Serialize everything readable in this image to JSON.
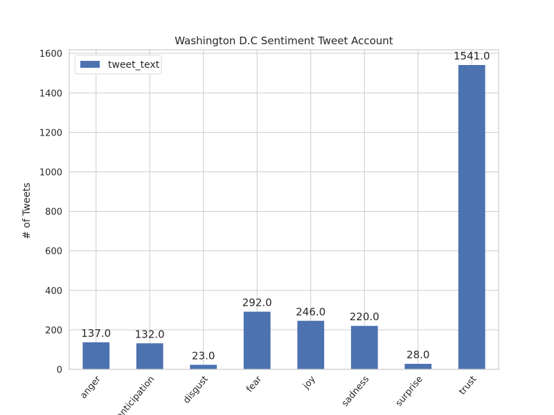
{
  "chart_data": {
    "type": "bar",
    "title": "Washington D.C Sentiment Tweet Account",
    "xlabel": "",
    "ylabel": "# of Tweets",
    "categories": [
      "anger",
      "anticipation",
      "disgust",
      "fear",
      "joy",
      "sadness",
      "surprise",
      "trust"
    ],
    "series": [
      {
        "name": "tweet_text",
        "values": [
          137.0,
          132.0,
          23.0,
          292.0,
          246.0,
          220.0,
          28.0,
          1541.0
        ],
        "color": "#4c72b0"
      }
    ],
    "value_labels": [
      "137.0",
      "132.0",
      "23.0",
      "292.0",
      "246.0",
      "220.0",
      "28.0",
      "1541.0"
    ],
    "ylim": [
      0,
      1618.05
    ],
    "yticks": [
      0,
      200,
      400,
      600,
      800,
      1000,
      1200,
      1400,
      1600
    ],
    "grid": true,
    "legend_position": "top-left",
    "x_tick_rotation": -50
  }
}
